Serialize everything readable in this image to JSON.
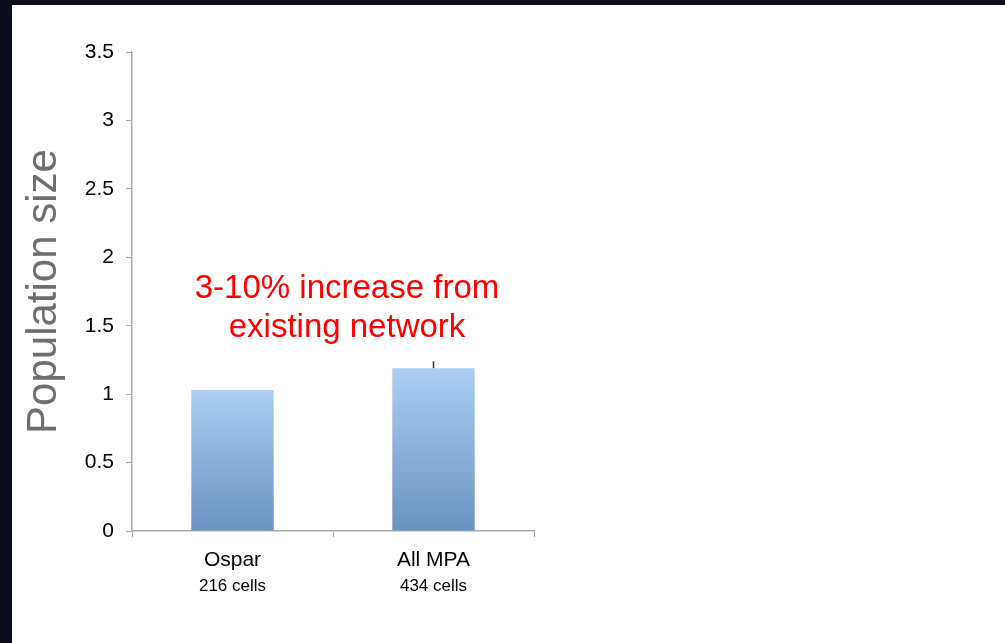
{
  "chart_data": {
    "type": "bar",
    "categories": [
      "Ospar\n216 cells",
      "All MPA\n434 cells"
    ],
    "values": [
      1.03,
      1.19
    ],
    "color": "#7db0ec",
    "errors": [
      null,
      [
        1.19,
        1.24
      ]
    ],
    "ylabel": "Population size",
    "ylim": [
      0,
      3.5
    ],
    "yticks": [
      0,
      0.5,
      1,
      1.5,
      2,
      2.5,
      3,
      3.5
    ],
    "grid": false,
    "legend": false,
    "annotations": [
      "3-10% increase from existing network"
    ]
  }
}
